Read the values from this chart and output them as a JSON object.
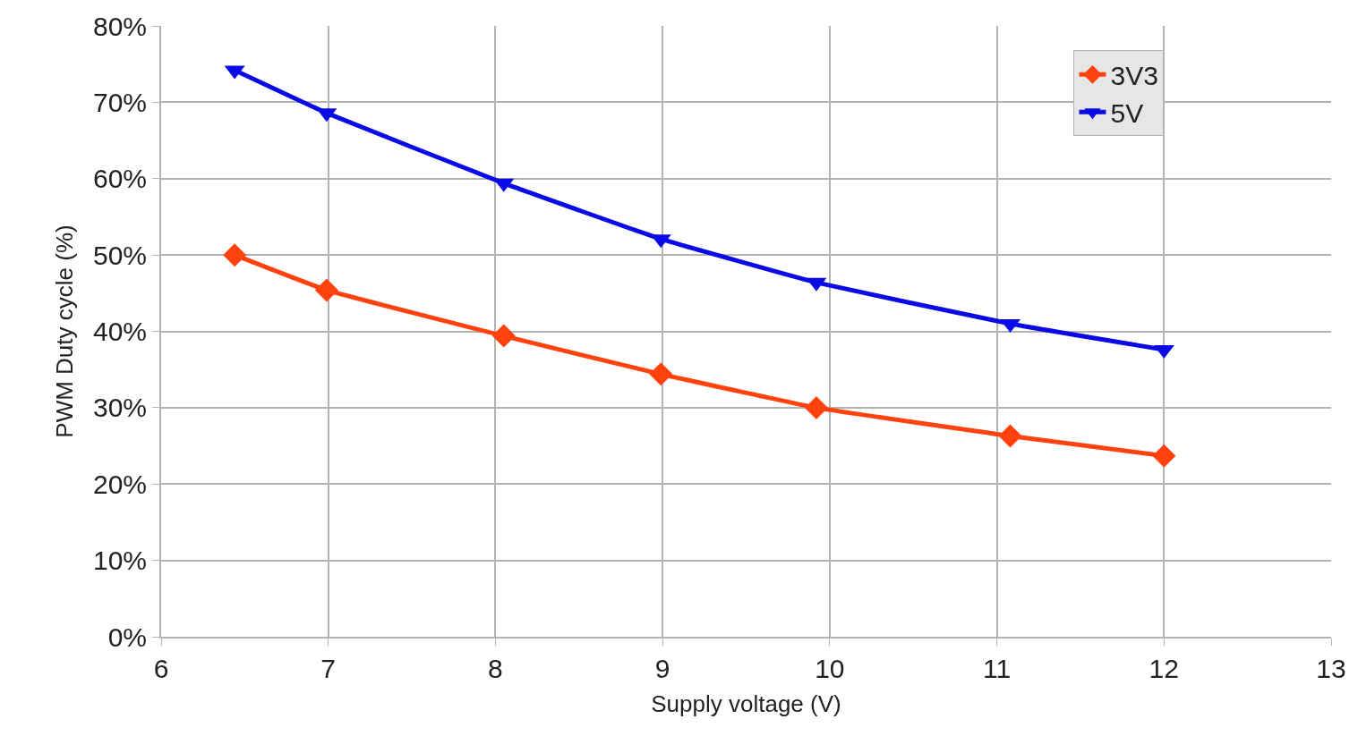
{
  "chart_data": {
    "type": "line",
    "xlabel": "Supply voltage (V)",
    "ylabel": "PWM Duty cycle (%)",
    "xlim": [
      6,
      13
    ],
    "xticks": [
      6,
      7,
      8,
      9,
      10,
      11,
      12,
      13
    ],
    "ylim": [
      0,
      80
    ],
    "yticks": [
      {
        "value": 0,
        "label": "0%"
      },
      {
        "value": 10,
        "label": "10%"
      },
      {
        "value": 20,
        "label": "20%"
      },
      {
        "value": 30,
        "label": "30%"
      },
      {
        "value": 40,
        "label": "40%"
      },
      {
        "value": 50,
        "label": "50%"
      },
      {
        "value": 60,
        "label": "60%"
      },
      {
        "value": 70,
        "label": "70%"
      },
      {
        "value": 80,
        "label": "80%"
      }
    ],
    "grid": true,
    "legend": "top right",
    "series": [
      {
        "name": "3V3",
        "color": "#ff420e",
        "marker": "diamond",
        "x": [
          6.44,
          6.99,
          8.05,
          8.99,
          9.92,
          11.08,
          12.0
        ],
        "values": [
          50.0,
          45.4,
          39.4,
          34.4,
          30.0,
          26.3,
          23.7
        ]
      },
      {
        "name": "5V",
        "color": "#0a0ae6",
        "marker": "triangle",
        "x": [
          6.44,
          6.99,
          8.05,
          8.99,
          9.92,
          11.08,
          12.0
        ],
        "values": [
          74.2,
          68.6,
          59.4,
          52.1,
          46.4,
          41.0,
          37.6
        ]
      }
    ]
  }
}
